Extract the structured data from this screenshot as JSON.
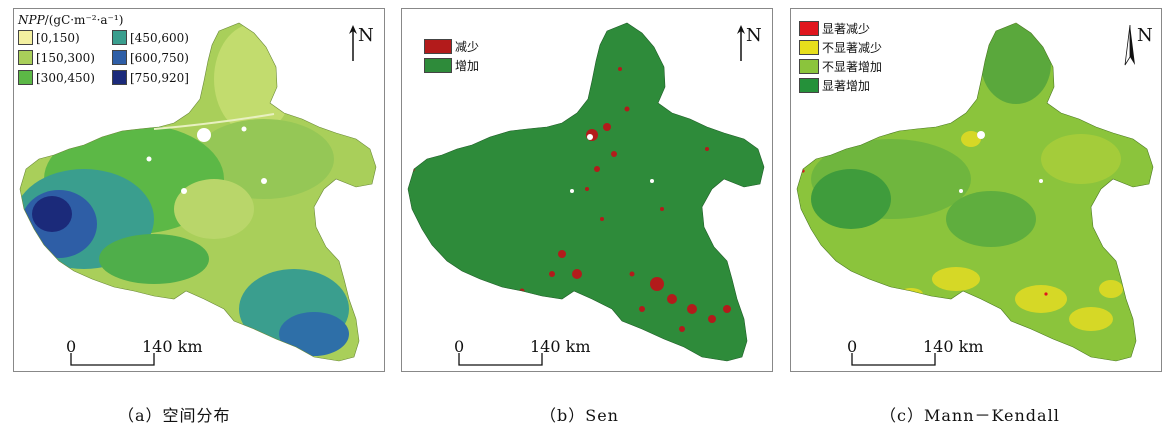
{
  "panels": [
    {
      "legend_title_italic": "NPP",
      "legend_title_rest": "/(gC·m⁻²·a⁻¹)",
      "legend": [
        {
          "label": "[0,150)",
          "color": "#f3f0a0"
        },
        {
          "label": "[450,600)",
          "color": "#3a9e8e"
        },
        {
          "label": "[150,300)",
          "color": "#a9cf5a"
        },
        {
          "label": "[600,750)",
          "color": "#2e5ea6"
        },
        {
          "label": "[300,450)",
          "color": "#5cb846"
        },
        {
          "label": "[750,920]",
          "color": "#1b2a7a"
        }
      ],
      "north": "N",
      "scale_start": "0",
      "scale_end": "140 km",
      "caption": "（a）空间分布"
    },
    {
      "legend": [
        {
          "label": "减少",
          "color": "#b31b1b"
        },
        {
          "label": "增加",
          "color": "#2e8b3a"
        }
      ],
      "north": "N",
      "scale_start": "0",
      "scale_end": "140 km",
      "caption": "（b）Sen"
    },
    {
      "legend": [
        {
          "label": "显著减少",
          "color": "#e0161e"
        },
        {
          "label": "不显著减少",
          "color": "#e6de1c"
        },
        {
          "label": "不显著增加",
          "color": "#8bc43c"
        },
        {
          "label": "显著增加",
          "color": "#25913a"
        }
      ],
      "north": "N",
      "scale_start": "0",
      "scale_end": "140 km",
      "caption": "（c）Mann－Kendall"
    }
  ]
}
